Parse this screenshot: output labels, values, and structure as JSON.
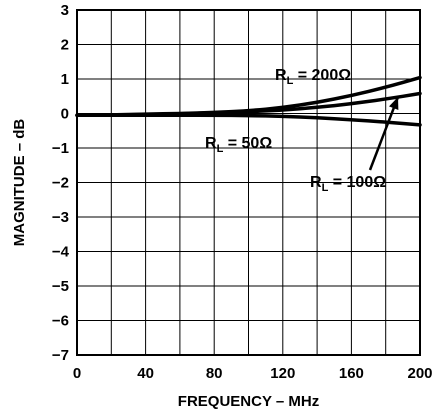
{
  "chart_data": {
    "type": "line",
    "xlabel": "FREQUENCY – MHz",
    "ylabel": "MAGNITUDE – dB",
    "xlim": [
      0,
      200
    ],
    "ylim": [
      -7,
      3
    ],
    "x_ticks": [
      0,
      40,
      80,
      120,
      160,
      200
    ],
    "x_tick_labels": [
      "0",
      "40",
      "80",
      "120",
      "160",
      "200"
    ],
    "y_ticks": [
      3,
      2,
      1,
      0,
      -1,
      -2,
      -3,
      -4,
      -5,
      -6,
      -7
    ],
    "y_tick_labels": [
      "3",
      "2",
      "1",
      "0",
      "−1",
      "−2",
      "−3",
      "−4",
      "−5",
      "−6",
      "−7"
    ],
    "grid": true,
    "grid_x_step": 20,
    "grid_y_step": 1,
    "series": [
      {
        "name": "R_L = 200Ω",
        "x": [
          0,
          20,
          40,
          60,
          80,
          100,
          120,
          140,
          160,
          180,
          200
        ],
        "values": [
          -0.05,
          -0.04,
          -0.02,
          0.0,
          0.03,
          0.08,
          0.17,
          0.32,
          0.52,
          0.76,
          1.04
        ]
      },
      {
        "name": "R_L = 100Ω",
        "x": [
          0,
          20,
          40,
          60,
          80,
          100,
          120,
          140,
          160,
          180,
          200
        ],
        "values": [
          -0.05,
          -0.04,
          -0.03,
          -0.01,
          0.02,
          0.05,
          0.1,
          0.18,
          0.28,
          0.42,
          0.58
        ]
      },
      {
        "name": "R_L = 50Ω",
        "x": [
          0,
          20,
          40,
          60,
          80,
          100,
          120,
          140,
          160,
          180,
          200
        ],
        "values": [
          -0.05,
          -0.05,
          -0.05,
          -0.05,
          -0.05,
          -0.06,
          -0.08,
          -0.12,
          -0.18,
          -0.25,
          -0.33
        ]
      }
    ],
    "annotations": [
      {
        "sub": "L",
        "text": " = 200Ω",
        "series": 0
      },
      {
        "sub": "L",
        "text": " = 50Ω",
        "series": 2
      },
      {
        "sub": "L",
        "text": " = 100Ω",
        "series": 1
      }
    ]
  }
}
